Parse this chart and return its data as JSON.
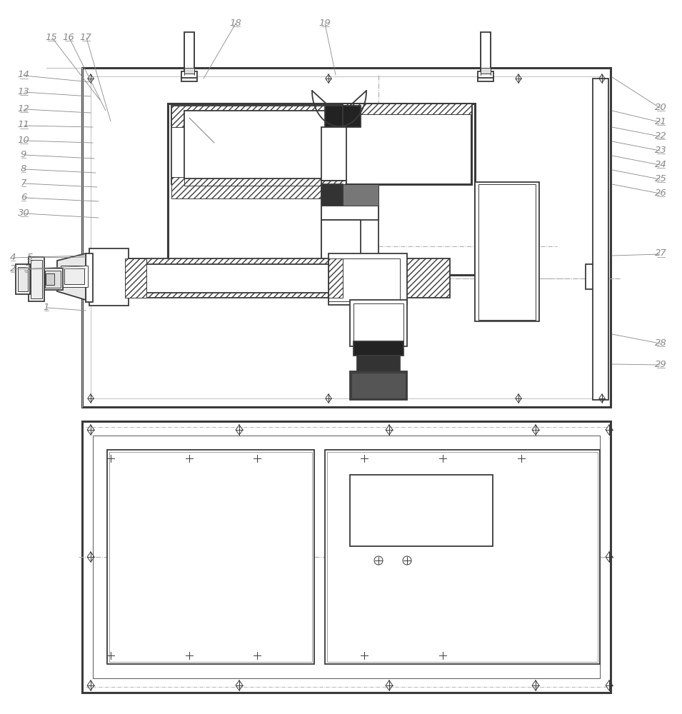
{
  "bg_color": "#ffffff",
  "lc": "#3a3a3a",
  "lc_light": "#aaaaaa",
  "lc_gray": "#888888",
  "lc_dark": "#111111",
  "lw_thick": 2.2,
  "lw_main": 1.3,
  "lw_thin": 0.7,
  "lw_xtra": 0.5,
  "label_color": "#888888",
  "label_fs": 9.5
}
